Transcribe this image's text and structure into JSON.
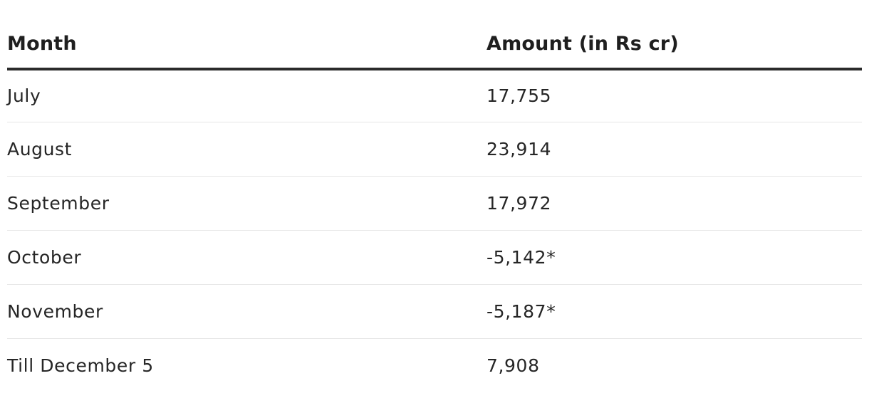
{
  "table": {
    "headers": {
      "month": "Month",
      "amount": "Amount (in Rs cr)"
    },
    "rows": [
      {
        "month": "July",
        "amount": "17,755"
      },
      {
        "month": "August",
        "amount": "23,914"
      },
      {
        "month": "September",
        "amount": "17,972"
      },
      {
        "month": "October",
        "amount": "-5,142*"
      },
      {
        "month": "November",
        "amount": "-5,187*"
      },
      {
        "month": "Till December 5",
        "amount": "7,908"
      }
    ]
  }
}
